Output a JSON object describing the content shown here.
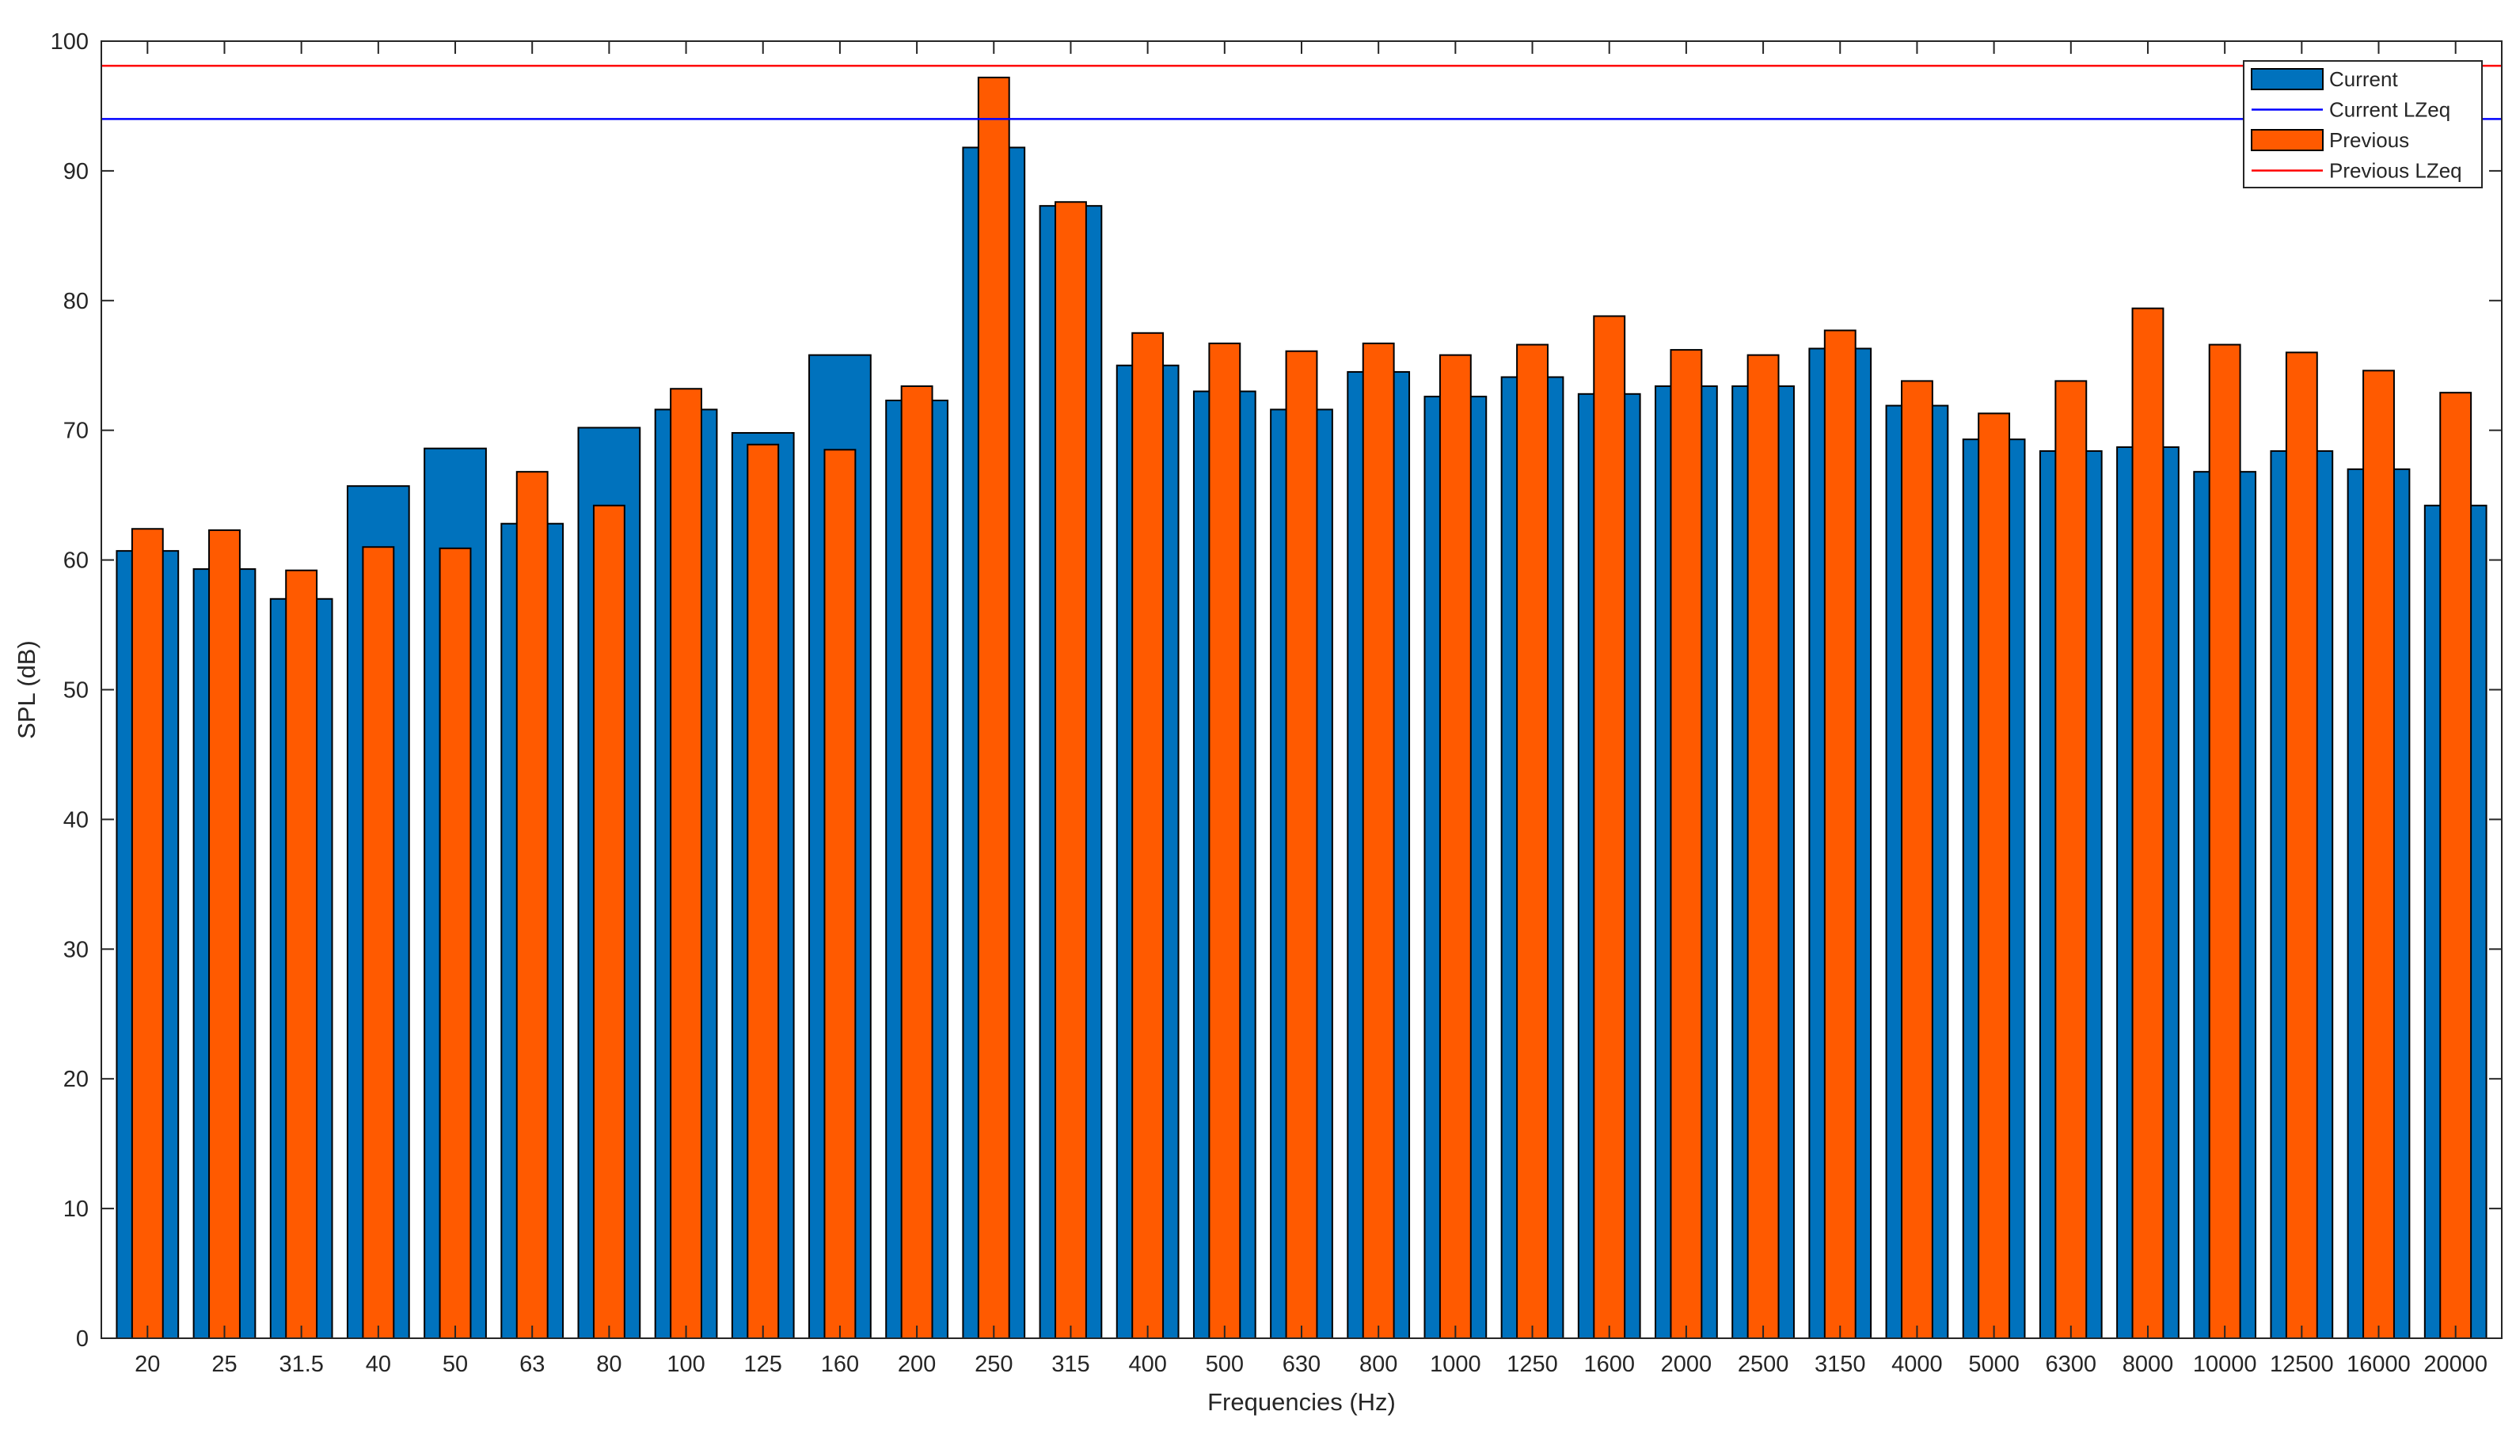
{
  "chart_data": {
    "type": "bar",
    "xlabel": "Frequencies (Hz)",
    "ylabel": "SPL (dB)",
    "ylim": [
      0,
      100
    ],
    "yticks": [
      0,
      10,
      20,
      30,
      40,
      50,
      60,
      70,
      80,
      90,
      100
    ],
    "grid": false,
    "legend_position": "top-right",
    "categories": [
      "20",
      "25",
      "31.5",
      "40",
      "50",
      "63",
      "80",
      "100",
      "125",
      "160",
      "200",
      "250",
      "315",
      "400",
      "500",
      "630",
      "800",
      "1000",
      "1250",
      "1600",
      "2000",
      "2500",
      "3150",
      "4000",
      "5000",
      "6300",
      "8000",
      "10000",
      "12500",
      "16000",
      "20000"
    ],
    "series": [
      {
        "name": "Current",
        "color": "#0072BD",
        "values": [
          60.7,
          59.3,
          57.0,
          65.7,
          68.6,
          62.8,
          70.2,
          71.6,
          69.8,
          75.8,
          72.3,
          91.8,
          87.3,
          75.0,
          73.0,
          71.6,
          74.5,
          72.6,
          74.1,
          72.8,
          73.4,
          73.4,
          76.3,
          71.9,
          69.3,
          68.4,
          68.7,
          66.8,
          68.4,
          67.0,
          64.2
        ]
      },
      {
        "name": "Previous",
        "color": "#FF5A00",
        "values": [
          62.4,
          62.3,
          59.2,
          61.0,
          60.9,
          66.8,
          64.2,
          73.2,
          68.9,
          68.5,
          73.4,
          97.2,
          87.6,
          77.5,
          76.7,
          76.1,
          76.7,
          75.8,
          76.6,
          78.8,
          76.2,
          75.8,
          77.7,
          73.8,
          71.3,
          73.8,
          79.4,
          76.6,
          76.0,
          74.6,
          72.9
        ]
      }
    ],
    "lines": [
      {
        "name": "Current LZeq",
        "value": 94.0,
        "color": "#0000FF"
      },
      {
        "name": "Previous LZeq",
        "value": 98.1,
        "color": "#FF0000"
      }
    ]
  }
}
